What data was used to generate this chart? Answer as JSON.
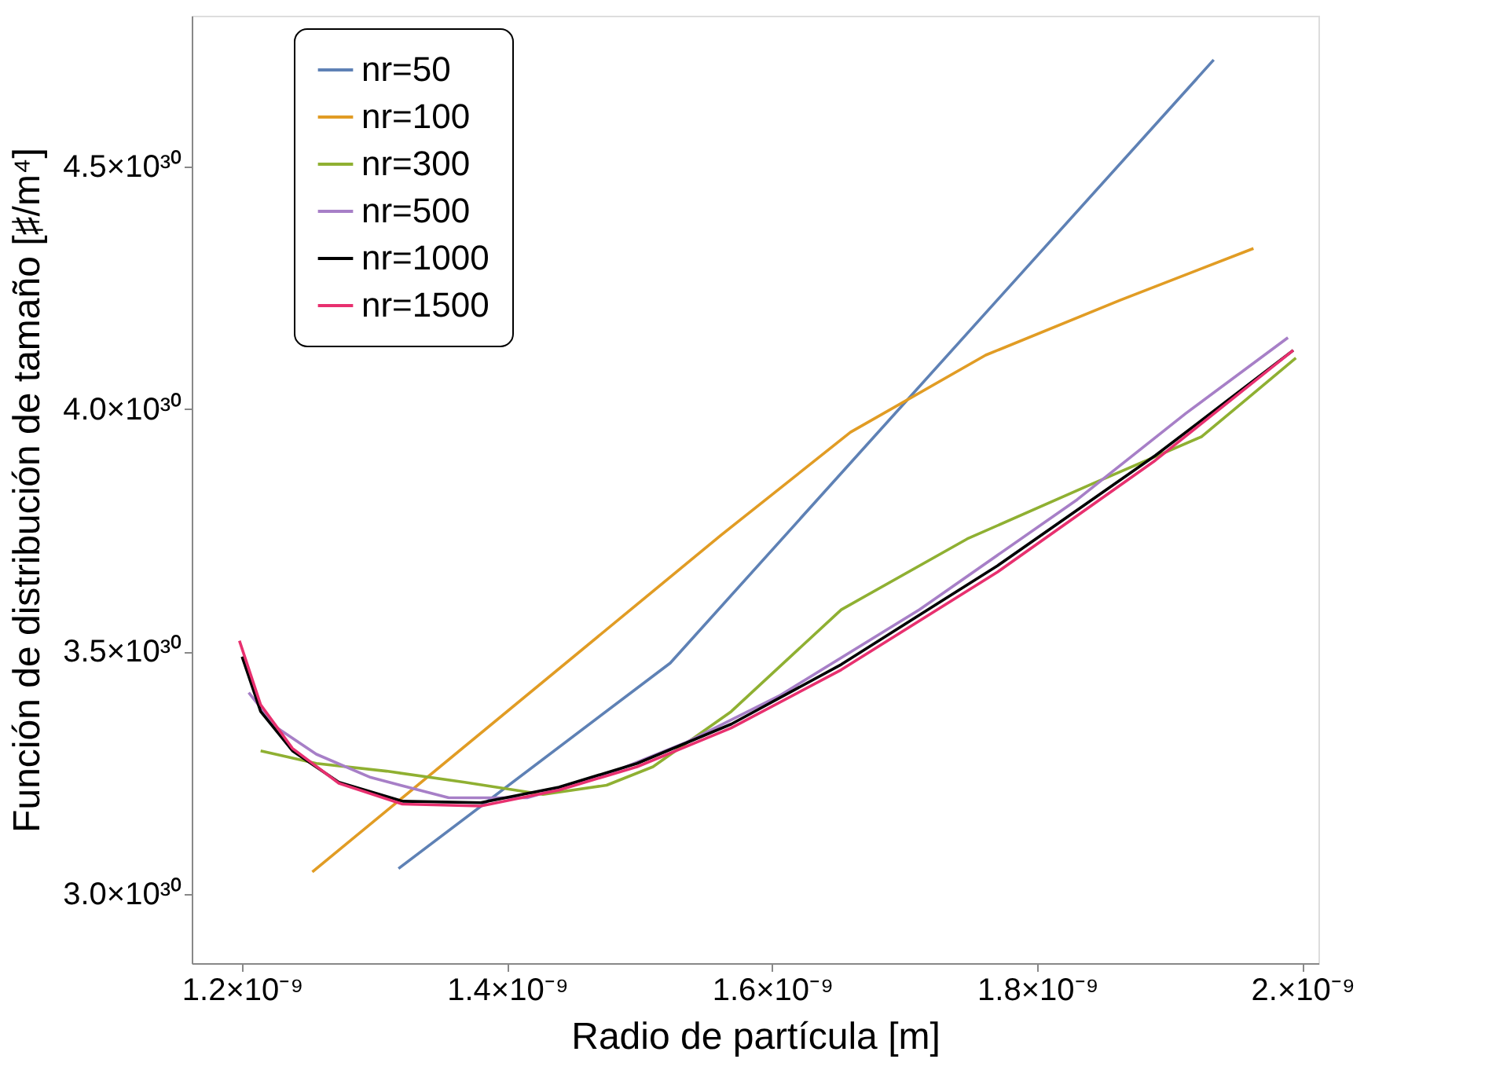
{
  "chart_data": {
    "type": "line",
    "xlabel": "Radio de partícula [m]",
    "ylabel": "Función de distribución de tamaño [♯/m⁴]",
    "xlim": [
      1.162e-09,
      2.012e-09
    ],
    "ylim": [
      2.857e+30,
      4.811e+30
    ],
    "xticks": [
      {
        "value": 1.2e-09,
        "label": "1.2×10⁻⁹"
      },
      {
        "value": 1.4e-09,
        "label": "1.4×10⁻⁹"
      },
      {
        "value": 1.6e-09,
        "label": "1.6×10⁻⁹"
      },
      {
        "value": 1.8e-09,
        "label": "1.8×10⁻⁹"
      },
      {
        "value": 2e-09,
        "label": "2.×10⁻⁹"
      }
    ],
    "yticks": [
      {
        "value": 3e+30,
        "label": "3.0×10³⁰"
      },
      {
        "value": 3.5e+30,
        "label": "3.5×10³⁰"
      },
      {
        "value": 4e+30,
        "label": "4.0×10³⁰"
      },
      {
        "value": 4.5e+30,
        "label": "4.5×10³⁰"
      }
    ],
    "grid": false,
    "legend": "top left",
    "marker": "none",
    "line_style": "solid",
    "series": [
      {
        "name": "nr=50",
        "color": "#5e81b5",
        "x": [
          1.318e-09,
          1.523e-09,
          1.933e-09
        ],
        "values": [
          3.052e+30,
          3.476e+30,
          4.72e+30
        ]
      },
      {
        "name": "nr=100",
        "color": "#e19c24",
        "x": [
          1.253e-09,
          1.561e-09,
          1.659e-09,
          1.761e-09,
          1.862e-09,
          1.963e-09
        ],
        "values": [
          3.045e+30,
          3.739e+30,
          3.952e+30,
          4.111e+30,
          4.224e+30,
          4.331e+30
        ]
      },
      {
        "name": "nr=300",
        "color": "#8fb032",
        "x": [
          1.214e-09,
          1.256e-09,
          1.309e-09,
          1.368e-09,
          1.427e-09,
          1.475e-09,
          1.51e-09,
          1.569e-09,
          1.652e-09,
          1.747e-09,
          1.841e-09,
          1.924e-09,
          1.995e-09
        ],
        "values": [
          3.295e+30,
          3.269e+30,
          3.253e+30,
          3.23e+30,
          3.205e+30,
          3.224e+30,
          3.262e+30,
          3.376e+30,
          3.586e+30,
          3.732e+30,
          3.845e+30,
          3.943e+30,
          4.105e+30
        ]
      },
      {
        "name": "nr=500",
        "color": "#a77fc7",
        "x": [
          1.205e-09,
          1.226e-09,
          1.256e-09,
          1.297e-09,
          1.356e-09,
          1.415e-09,
          1.475e-09,
          1.534e-09,
          1.605e-09,
          1.711e-09,
          1.83e-09,
          1.912e-09,
          1.989e-09
        ],
        "values": [
          3.415e+30,
          3.343e+30,
          3.288e+30,
          3.24e+30,
          3.198e+30,
          3.198e+30,
          3.246e+30,
          3.311e+30,
          3.408e+30,
          3.586e+30,
          3.813e+30,
          3.991e+30,
          4.147e+30
        ]
      },
      {
        "name": "nr=1000",
        "color": "#000000",
        "x": [
          1.2e-09,
          1.214e-09,
          1.238e-09,
          1.273e-09,
          1.321e-09,
          1.38e-09,
          1.439e-09,
          1.498e-09,
          1.569e-09,
          1.652e-09,
          1.77e-09,
          1.889e-09,
          1.993e-09
        ],
        "values": [
          3.489e+30,
          3.376e+30,
          3.295e+30,
          3.23e+30,
          3.191e+30,
          3.188e+30,
          3.22e+30,
          3.269e+30,
          3.35e+30,
          3.473e+30,
          3.677e+30,
          3.904e+30,
          4.121e+30
        ]
      },
      {
        "name": "nr=1500",
        "color": "#e8306f",
        "x": [
          1.198e-09,
          1.214e-09,
          1.238e-09,
          1.273e-09,
          1.321e-09,
          1.38e-09,
          1.439e-09,
          1.498e-09,
          1.569e-09,
          1.652e-09,
          1.77e-09,
          1.889e-09,
          1.993e-09
        ],
        "values": [
          3.522e+30,
          3.39e+30,
          3.3e+30,
          3.228e+30,
          3.185e+30,
          3.181e+30,
          3.214e+30,
          3.262e+30,
          3.342e+30,
          3.462e+30,
          3.664e+30,
          3.894e+30,
          4.121e+30
        ]
      }
    ]
  }
}
